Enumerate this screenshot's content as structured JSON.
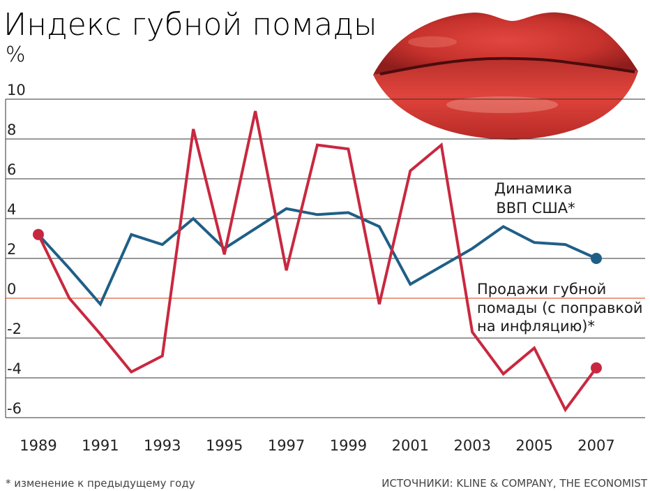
{
  "title": "Индекс губной помады",
  "unit": "%",
  "footnote": "* изменение к предыдущему году",
  "source": "ИСТОЧНИКИ: KLINE & COMPANY, THE ECONOMIST",
  "colors": {
    "gdp": "#1f5f87",
    "lipstick": "#c8283f",
    "grid": "#333333",
    "zero": "#e0603a"
  },
  "chart_data": {
    "type": "line",
    "x": [
      1989,
      1990,
      1991,
      1992,
      1993,
      1994,
      1995,
      1996,
      1997,
      1998,
      1999,
      2000,
      2001,
      2002,
      2003,
      2004,
      2005,
      2006,
      2007
    ],
    "x_tick_labels": [
      "1989",
      "1991",
      "1993",
      "1995",
      "1997",
      "1999",
      "2001",
      "2003",
      "2005",
      "2007"
    ],
    "y_tick_labels": [
      "10",
      "8",
      "6",
      "4",
      "2",
      "0",
      "-2",
      "-4",
      "-6"
    ],
    "ylim": [
      -6,
      10
    ],
    "grid": true,
    "series": [
      {
        "name": "Динамика ВВП США*",
        "name_lines": [
          "Динамика",
          "ВВП США*"
        ],
        "values": [
          3.2,
          1.5,
          -0.3,
          3.2,
          2.7,
          4.0,
          2.5,
          3.5,
          4.5,
          4.2,
          4.3,
          3.6,
          0.7,
          1.6,
          2.5,
          3.6,
          2.8,
          2.7,
          2.0
        ]
      },
      {
        "name": "Продажи губной помады (с поправкой на инфляцию)*",
        "name_lines": [
          "Продажи губной",
          "помады (с поправкой",
          "на инфляцию)*"
        ],
        "values": [
          3.2,
          0.0,
          -1.8,
          -3.7,
          -2.9,
          8.5,
          2.2,
          9.4,
          1.4,
          7.7,
          7.5,
          -0.3,
          6.4,
          7.7,
          -1.7,
          -3.8,
          -2.5,
          -5.6,
          -3.5
        ]
      }
    ]
  }
}
